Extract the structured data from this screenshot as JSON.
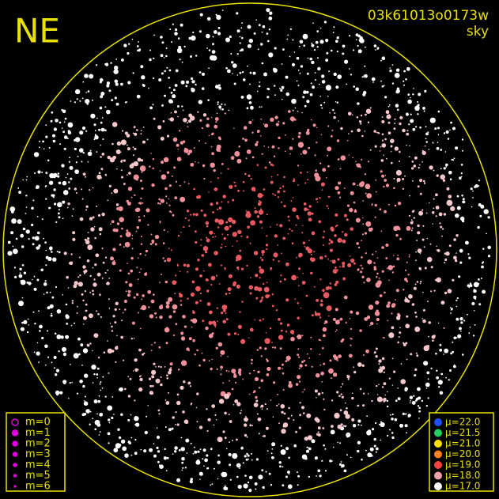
{
  "header": {
    "label": "NE",
    "frame_id": "03k61013o0173w",
    "subtitle": "sky"
  },
  "magnitude_legend": {
    "color": "#e000e0",
    "items": [
      "m=0",
      "m=1",
      "m=2",
      "m=3",
      "m=4",
      "m=5",
      "m=6"
    ]
  },
  "brightness_legend": {
    "items": [
      {
        "label": "μ=22.0",
        "color": "#2050ff"
      },
      {
        "label": "μ=21.5",
        "color": "#20d060"
      },
      {
        "label": "μ=21.0",
        "color": "#ffe000"
      },
      {
        "label": "μ=20.0",
        "color": "#ff8020"
      },
      {
        "label": "μ=19.0",
        "color": "#ff4040"
      },
      {
        "label": "μ=18.0",
        "color": "#f0a0a8"
      },
      {
        "label": "μ=17.0",
        "color": "#ffffff"
      }
    ]
  }
}
